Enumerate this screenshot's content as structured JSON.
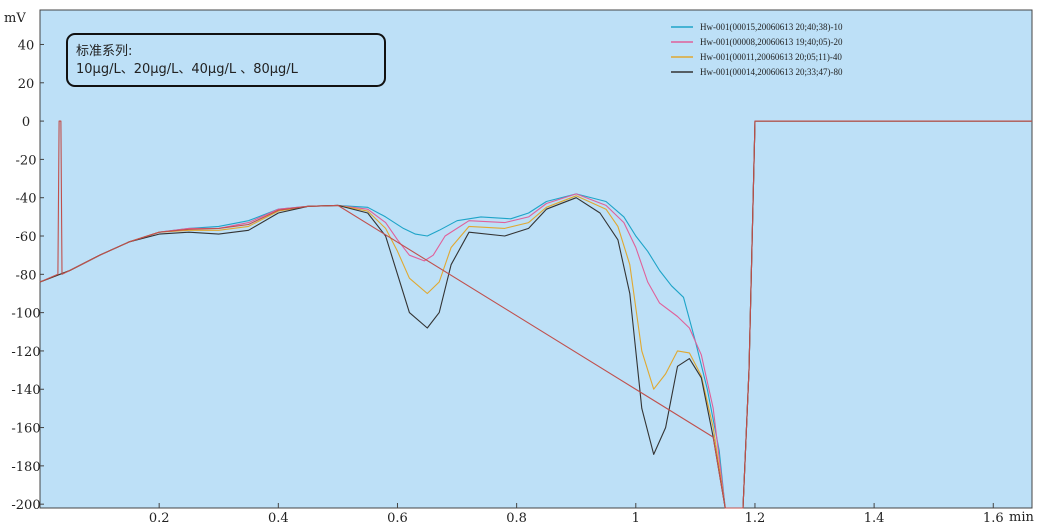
{
  "chart_data": {
    "type": "line",
    "title": "",
    "xlabel": "min",
    "ylabel": "mV",
    "xlim": [
      0.0,
      1.665
    ],
    "ylim": [
      -202,
      58
    ],
    "x_ticks": [
      0.2,
      0.4,
      0.6,
      0.8,
      1,
      1.2,
      1.4,
      1.6
    ],
    "x_tick_labels": [
      "0.2",
      "0.4",
      "0.6",
      "0.8",
      "1",
      "1.2",
      "1.4",
      "1.6"
    ],
    "y_ticks": [
      40,
      20,
      0,
      -20,
      -40,
      -60,
      -80,
      -100,
      -120,
      -140,
      -160,
      -180,
      -200
    ],
    "y_tick_labels": [
      "40",
      "20",
      "0",
      "-20",
      "-40",
      "-60",
      "-80",
      "-100",
      "-120",
      "-140",
      "-160",
      "-180",
      "-200"
    ],
    "background_color": "#bde0f7",
    "grid": false,
    "legend_position": "top-right",
    "annotation": {
      "line1": "标准系列:",
      "line2": "10μg/L、20μg/L、40μg/L 、80μg/L"
    },
    "series": [
      {
        "name": "Hw-001(00015,20060613 20;40;38)-10",
        "color": "#1ea4c8",
        "points": [
          [
            0,
            -84
          ],
          [
            0.05,
            -78
          ],
          [
            0.1,
            -70
          ],
          [
            0.15,
            -63
          ],
          [
            0.2,
            -58
          ],
          [
            0.25,
            -56
          ],
          [
            0.3,
            -55
          ],
          [
            0.35,
            -52
          ],
          [
            0.4,
            -46
          ],
          [
            0.45,
            -44.5
          ],
          [
            0.5,
            -44
          ],
          [
            0.55,
            -45
          ],
          [
            0.58,
            -50
          ],
          [
            0.61,
            -56
          ],
          [
            0.63,
            -59
          ],
          [
            0.65,
            -60
          ],
          [
            0.67,
            -57
          ],
          [
            0.7,
            -52
          ],
          [
            0.74,
            -50
          ],
          [
            0.79,
            -51
          ],
          [
            0.82,
            -48
          ],
          [
            0.85,
            -42
          ],
          [
            0.9,
            -38
          ],
          [
            0.95,
            -42
          ],
          [
            0.98,
            -50
          ],
          [
            1.0,
            -60
          ],
          [
            1.02,
            -68
          ],
          [
            1.04,
            -78
          ],
          [
            1.06,
            -86
          ],
          [
            1.08,
            -92
          ],
          [
            1.1,
            -115
          ],
          [
            1.12,
            -140
          ],
          [
            1.14,
            -172
          ],
          [
            1.15,
            -202
          ],
          [
            1.18,
            -202
          ],
          [
            1.19,
            -130
          ],
          [
            1.2,
            0
          ],
          [
            1.665,
            0
          ]
        ]
      },
      {
        "name": "Hw-001(00008,20060613 19;40;05)-20",
        "color": "#e0609a",
        "points": [
          [
            0,
            -84
          ],
          [
            0.05,
            -78
          ],
          [
            0.1,
            -70
          ],
          [
            0.15,
            -63
          ],
          [
            0.2,
            -58
          ],
          [
            0.25,
            -56
          ],
          [
            0.3,
            -56
          ],
          [
            0.35,
            -53
          ],
          [
            0.4,
            -46
          ],
          [
            0.45,
            -44.5
          ],
          [
            0.5,
            -44
          ],
          [
            0.55,
            -46
          ],
          [
            0.58,
            -53
          ],
          [
            0.6,
            -62
          ],
          [
            0.62,
            -70
          ],
          [
            0.645,
            -73
          ],
          [
            0.66,
            -70
          ],
          [
            0.68,
            -60
          ],
          [
            0.72,
            -52
          ],
          [
            0.78,
            -53
          ],
          [
            0.82,
            -50
          ],
          [
            0.85,
            -43
          ],
          [
            0.9,
            -38
          ],
          [
            0.95,
            -44
          ],
          [
            0.98,
            -53
          ],
          [
            1.0,
            -66
          ],
          [
            1.02,
            -84
          ],
          [
            1.04,
            -95
          ],
          [
            1.07,
            -102
          ],
          [
            1.09,
            -108
          ],
          [
            1.11,
            -122
          ],
          [
            1.13,
            -150
          ],
          [
            1.15,
            -202
          ],
          [
            1.18,
            -202
          ],
          [
            1.19,
            -130
          ],
          [
            1.2,
            0
          ],
          [
            1.665,
            0
          ]
        ]
      },
      {
        "name": "Hw-001(00011,20060613 20;05;11)-40",
        "color": "#e0a830",
        "points": [
          [
            0,
            -84
          ],
          [
            0.05,
            -78
          ],
          [
            0.1,
            -70
          ],
          [
            0.15,
            -63
          ],
          [
            0.2,
            -58
          ],
          [
            0.25,
            -57
          ],
          [
            0.3,
            -57
          ],
          [
            0.35,
            -55
          ],
          [
            0.4,
            -47
          ],
          [
            0.45,
            -44.5
          ],
          [
            0.5,
            -44
          ],
          [
            0.55,
            -47
          ],
          [
            0.58,
            -56
          ],
          [
            0.6,
            -68
          ],
          [
            0.62,
            -82
          ],
          [
            0.65,
            -90
          ],
          [
            0.67,
            -84
          ],
          [
            0.69,
            -66
          ],
          [
            0.72,
            -55
          ],
          [
            0.78,
            -56
          ],
          [
            0.82,
            -53
          ],
          [
            0.85,
            -45
          ],
          [
            0.9,
            -39
          ],
          [
            0.95,
            -46
          ],
          [
            0.97,
            -55
          ],
          [
            0.99,
            -75
          ],
          [
            1.01,
            -120
          ],
          [
            1.03,
            -140
          ],
          [
            1.05,
            -132
          ],
          [
            1.07,
            -120
          ],
          [
            1.09,
            -121
          ],
          [
            1.11,
            -133
          ],
          [
            1.13,
            -160
          ],
          [
            1.15,
            -202
          ],
          [
            1.18,
            -202
          ],
          [
            1.19,
            -130
          ],
          [
            1.2,
            0
          ],
          [
            1.665,
            0
          ]
        ]
      },
      {
        "name": "Hw-001(00014,20060613 20;33;47)-80",
        "color": "#333333",
        "points": [
          [
            0,
            -84
          ],
          [
            0.05,
            -78
          ],
          [
            0.1,
            -70
          ],
          [
            0.15,
            -63
          ],
          [
            0.2,
            -59
          ],
          [
            0.25,
            -58
          ],
          [
            0.3,
            -59
          ],
          [
            0.35,
            -57
          ],
          [
            0.4,
            -48
          ],
          [
            0.45,
            -44.5
          ],
          [
            0.5,
            -44
          ],
          [
            0.55,
            -48
          ],
          [
            0.58,
            -60
          ],
          [
            0.6,
            -80
          ],
          [
            0.62,
            -100
          ],
          [
            0.65,
            -108
          ],
          [
            0.67,
            -100
          ],
          [
            0.69,
            -75
          ],
          [
            0.72,
            -58
          ],
          [
            0.78,
            -60
          ],
          [
            0.82,
            -56
          ],
          [
            0.85,
            -46
          ],
          [
            0.9,
            -40
          ],
          [
            0.94,
            -48
          ],
          [
            0.97,
            -62
          ],
          [
            0.99,
            -90
          ],
          [
            1.01,
            -150
          ],
          [
            1.03,
            -174
          ],
          [
            1.05,
            -160
          ],
          [
            1.07,
            -128
          ],
          [
            1.09,
            -124
          ],
          [
            1.11,
            -134
          ],
          [
            1.13,
            -165
          ],
          [
            1.15,
            -202
          ],
          [
            1.18,
            -202
          ],
          [
            1.19,
            -130
          ],
          [
            1.2,
            0
          ],
          [
            1.665,
            0
          ]
        ]
      },
      {
        "name": "",
        "color": "#c0504d",
        "points": [
          [
            0,
            -84
          ],
          [
            0.03,
            -80
          ],
          [
            0.032,
            0
          ],
          [
            0.035,
            0
          ],
          [
            0.037,
            -80
          ],
          [
            0.05,
            -78
          ],
          [
            0.1,
            -70
          ],
          [
            0.15,
            -63
          ],
          [
            0.2,
            -58
          ],
          [
            0.25,
            -56.5
          ],
          [
            0.3,
            -56
          ],
          [
            0.35,
            -54
          ],
          [
            0.4,
            -46.5
          ],
          [
            0.45,
            -44.5
          ],
          [
            0.5,
            -44
          ],
          [
            1.13,
            -165
          ],
          [
            1.15,
            -202
          ],
          [
            1.18,
            -202
          ],
          [
            1.19,
            -130
          ],
          [
            1.2,
            0
          ],
          [
            1.665,
            0
          ]
        ]
      }
    ]
  }
}
